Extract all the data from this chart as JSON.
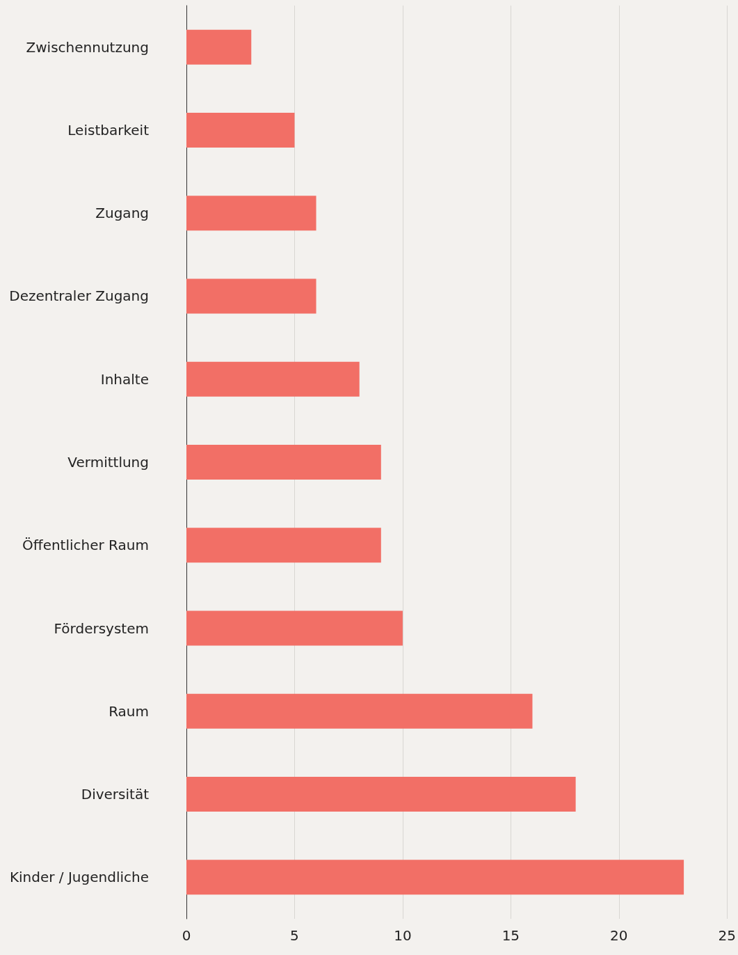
{
  "chart_data": {
    "type": "bar",
    "orientation": "horizontal",
    "categories": [
      "Zwischennutzung",
      "Leistbarkeit",
      "Zugang",
      "Dezentraler Zugang",
      "Inhalte",
      "Vermittlung",
      "Öffentlicher Raum",
      "Fördersystem",
      "Raum",
      "Diversität",
      "Kinder / Jugendliche"
    ],
    "values": [
      3,
      5,
      6,
      6,
      8,
      9,
      9,
      10,
      16,
      18,
      23
    ],
    "color": "#f26f66",
    "xlim": [
      0,
      25
    ],
    "xticks": [
      0,
      5,
      10,
      15,
      20,
      25
    ],
    "grid": "x"
  }
}
